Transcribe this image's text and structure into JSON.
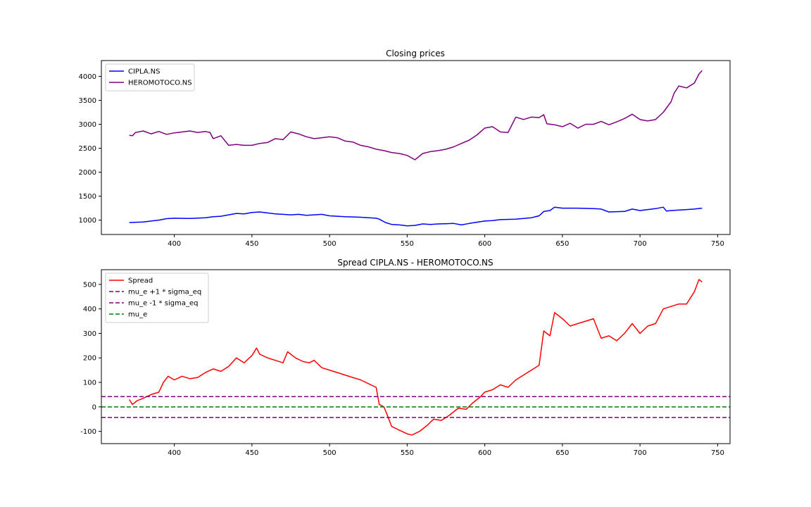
{
  "chart_data": [
    {
      "type": "line",
      "title": "Closing prices",
      "xlabel": "",
      "ylabel": "",
      "xlim": [
        353,
        758
      ],
      "ylim": [
        700,
        4330
      ],
      "xticks": [
        400,
        450,
        500,
        550,
        600,
        650,
        700,
        750
      ],
      "yticks": [
        1000,
        1500,
        2000,
        2500,
        3000,
        3500,
        4000
      ],
      "legend_position": "top-left",
      "series": [
        {
          "name": "CIPLA.NS",
          "color": "#0000ff",
          "dash": "solid",
          "points": [
            [
              371,
              950
            ],
            [
              380,
              960
            ],
            [
              385,
              980
            ],
            [
              390,
              1000
            ],
            [
              395,
              1030
            ],
            [
              400,
              1040
            ],
            [
              410,
              1035
            ],
            [
              420,
              1050
            ],
            [
              425,
              1070
            ],
            [
              430,
              1080
            ],
            [
              435,
              1110
            ],
            [
              440,
              1140
            ],
            [
              445,
              1130
            ],
            [
              450,
              1160
            ],
            [
              455,
              1170
            ],
            [
              460,
              1150
            ],
            [
              465,
              1130
            ],
            [
              470,
              1120
            ],
            [
              475,
              1110
            ],
            [
              480,
              1120
            ],
            [
              485,
              1100
            ],
            [
              490,
              1110
            ],
            [
              495,
              1120
            ],
            [
              500,
              1090
            ],
            [
              505,
              1080
            ],
            [
              510,
              1070
            ],
            [
              520,
              1060
            ],
            [
              530,
              1040
            ],
            [
              532,
              1020
            ],
            [
              536,
              950
            ],
            [
              540,
              910
            ],
            [
              545,
              900
            ],
            [
              550,
              880
            ],
            [
              555,
              890
            ],
            [
              560,
              920
            ],
            [
              565,
              910
            ],
            [
              570,
              920
            ],
            [
              580,
              930
            ],
            [
              585,
              900
            ],
            [
              590,
              930
            ],
            [
              600,
              980
            ],
            [
              605,
              990
            ],
            [
              610,
              1010
            ],
            [
              620,
              1020
            ],
            [
              630,
              1050
            ],
            [
              635,
              1090
            ],
            [
              638,
              1180
            ],
            [
              642,
              1200
            ],
            [
              645,
              1270
            ],
            [
              650,
              1250
            ],
            [
              660,
              1250
            ],
            [
              670,
              1240
            ],
            [
              675,
              1230
            ],
            [
              680,
              1170
            ],
            [
              690,
              1180
            ],
            [
              695,
              1230
            ],
            [
              700,
              1200
            ],
            [
              705,
              1220
            ],
            [
              710,
              1240
            ],
            [
              715,
              1270
            ],
            [
              717,
              1190
            ],
            [
              720,
              1200
            ],
            [
              730,
              1220
            ],
            [
              735,
              1230
            ],
            [
              740,
              1250
            ]
          ]
        },
        {
          "name": "HEROMOTOCO.NS",
          "color": "#800080",
          "dash": "solid",
          "points": [
            [
              371,
              2770
            ],
            [
              373,
              2760
            ],
            [
              375,
              2830
            ],
            [
              380,
              2860
            ],
            [
              385,
              2800
            ],
            [
              390,
              2850
            ],
            [
              395,
              2790
            ],
            [
              400,
              2820
            ],
            [
              405,
              2840
            ],
            [
              410,
              2860
            ],
            [
              415,
              2830
            ],
            [
              420,
              2850
            ],
            [
              423,
              2830
            ],
            [
              425,
              2700
            ],
            [
              430,
              2760
            ],
            [
              435,
              2560
            ],
            [
              440,
              2580
            ],
            [
              445,
              2560
            ],
            [
              450,
              2560
            ],
            [
              455,
              2600
            ],
            [
              460,
              2620
            ],
            [
              465,
              2700
            ],
            [
              470,
              2680
            ],
            [
              475,
              2840
            ],
            [
              480,
              2800
            ],
            [
              485,
              2740
            ],
            [
              490,
              2700
            ],
            [
              495,
              2720
            ],
            [
              500,
              2740
            ],
            [
              505,
              2720
            ],
            [
              510,
              2650
            ],
            [
              515,
              2630
            ],
            [
              520,
              2560
            ],
            [
              525,
              2530
            ],
            [
              530,
              2480
            ],
            [
              535,
              2450
            ],
            [
              540,
              2410
            ],
            [
              545,
              2390
            ],
            [
              550,
              2350
            ],
            [
              555,
              2260
            ],
            [
              560,
              2390
            ],
            [
              565,
              2430
            ],
            [
              570,
              2450
            ],
            [
              575,
              2480
            ],
            [
              580,
              2530
            ],
            [
              585,
              2600
            ],
            [
              590,
              2670
            ],
            [
              595,
              2780
            ],
            [
              600,
              2920
            ],
            [
              605,
              2950
            ],
            [
              610,
              2840
            ],
            [
              615,
              2830
            ],
            [
              620,
              3150
            ],
            [
              625,
              3100
            ],
            [
              630,
              3150
            ],
            [
              635,
              3140
            ],
            [
              638,
              3200
            ],
            [
              640,
              3010
            ],
            [
              645,
              2990
            ],
            [
              650,
              2950
            ],
            [
              655,
              3020
            ],
            [
              660,
              2920
            ],
            [
              665,
              3000
            ],
            [
              670,
              3000
            ],
            [
              675,
              3060
            ],
            [
              680,
              2990
            ],
            [
              685,
              3050
            ],
            [
              690,
              3120
            ],
            [
              695,
              3210
            ],
            [
              700,
              3100
            ],
            [
              705,
              3070
            ],
            [
              710,
              3100
            ],
            [
              715,
              3250
            ],
            [
              720,
              3470
            ],
            [
              722,
              3650
            ],
            [
              725,
              3800
            ],
            [
              730,
              3760
            ],
            [
              735,
              3860
            ],
            [
              738,
              4050
            ],
            [
              740,
              4120
            ]
          ]
        }
      ]
    },
    {
      "type": "line",
      "title": "Spread CIPLA.NS - HEROMOTOCO.NS",
      "xlabel": "",
      "ylabel": "",
      "xlim": [
        353,
        758
      ],
      "ylim": [
        -150,
        560
      ],
      "xticks": [
        400,
        450,
        500,
        550,
        600,
        650,
        700,
        750
      ],
      "yticks": [
        -100,
        0,
        100,
        200,
        300,
        400,
        500
      ],
      "legend_position": "top-left",
      "series": [
        {
          "name": "Spread",
          "color": "#ff0000",
          "dash": "solid",
          "points": [
            [
              371,
              30
            ],
            [
              373,
              10
            ],
            [
              376,
              25
            ],
            [
              380,
              35
            ],
            [
              385,
              50
            ],
            [
              390,
              60
            ],
            [
              393,
              100
            ],
            [
              396,
              125
            ],
            [
              400,
              110
            ],
            [
              405,
              125
            ],
            [
              410,
              115
            ],
            [
              415,
              120
            ],
            [
              420,
              140
            ],
            [
              425,
              155
            ],
            [
              430,
              145
            ],
            [
              435,
              165
            ],
            [
              440,
              200
            ],
            [
              445,
              180
            ],
            [
              450,
              210
            ],
            [
              453,
              240
            ],
            [
              455,
              215
            ],
            [
              460,
              200
            ],
            [
              465,
              190
            ],
            [
              470,
              180
            ],
            [
              473,
              225
            ],
            [
              478,
              200
            ],
            [
              483,
              185
            ],
            [
              487,
              180
            ],
            [
              490,
              190
            ],
            [
              495,
              160
            ],
            [
              500,
              150
            ],
            [
              505,
              140
            ],
            [
              510,
              130
            ],
            [
              515,
              120
            ],
            [
              520,
              110
            ],
            [
              525,
              95
            ],
            [
              530,
              80
            ],
            [
              532,
              10
            ],
            [
              535,
              0
            ],
            [
              537,
              -30
            ],
            [
              540,
              -80
            ],
            [
              545,
              -95
            ],
            [
              550,
              -110
            ],
            [
              553,
              -115
            ],
            [
              558,
              -100
            ],
            [
              563,
              -75
            ],
            [
              567,
              -50
            ],
            [
              572,
              -55
            ],
            [
              577,
              -35
            ],
            [
              583,
              -5
            ],
            [
              588,
              -10
            ],
            [
              592,
              15
            ],
            [
              597,
              40
            ],
            [
              600,
              60
            ],
            [
              605,
              70
            ],
            [
              610,
              90
            ],
            [
              615,
              80
            ],
            [
              620,
              110
            ],
            [
              625,
              130
            ],
            [
              630,
              150
            ],
            [
              635,
              170
            ],
            [
              638,
              310
            ],
            [
              642,
              290
            ],
            [
              645,
              385
            ],
            [
              650,
              360
            ],
            [
              655,
              330
            ],
            [
              660,
              340
            ],
            [
              665,
              350
            ],
            [
              670,
              360
            ],
            [
              675,
              280
            ],
            [
              680,
              290
            ],
            [
              685,
              270
            ],
            [
              690,
              300
            ],
            [
              695,
              340
            ],
            [
              700,
              300
            ],
            [
              705,
              330
            ],
            [
              710,
              340
            ],
            [
              715,
              400
            ],
            [
              720,
              410
            ],
            [
              725,
              420
            ],
            [
              730,
              420
            ],
            [
              735,
              470
            ],
            [
              738,
              520
            ],
            [
              740,
              510
            ]
          ]
        },
        {
          "name": "mu_e +1 * sigma_eq",
          "color": "#800080",
          "dash": "dashed",
          "hline": 42
        },
        {
          "name": "mu_e -1 * sigma_eq",
          "color": "#800080",
          "dash": "dashed",
          "hline": -43
        },
        {
          "name": "mu_e",
          "color": "#008000",
          "dash": "dashed",
          "hline": 0
        }
      ]
    }
  ]
}
